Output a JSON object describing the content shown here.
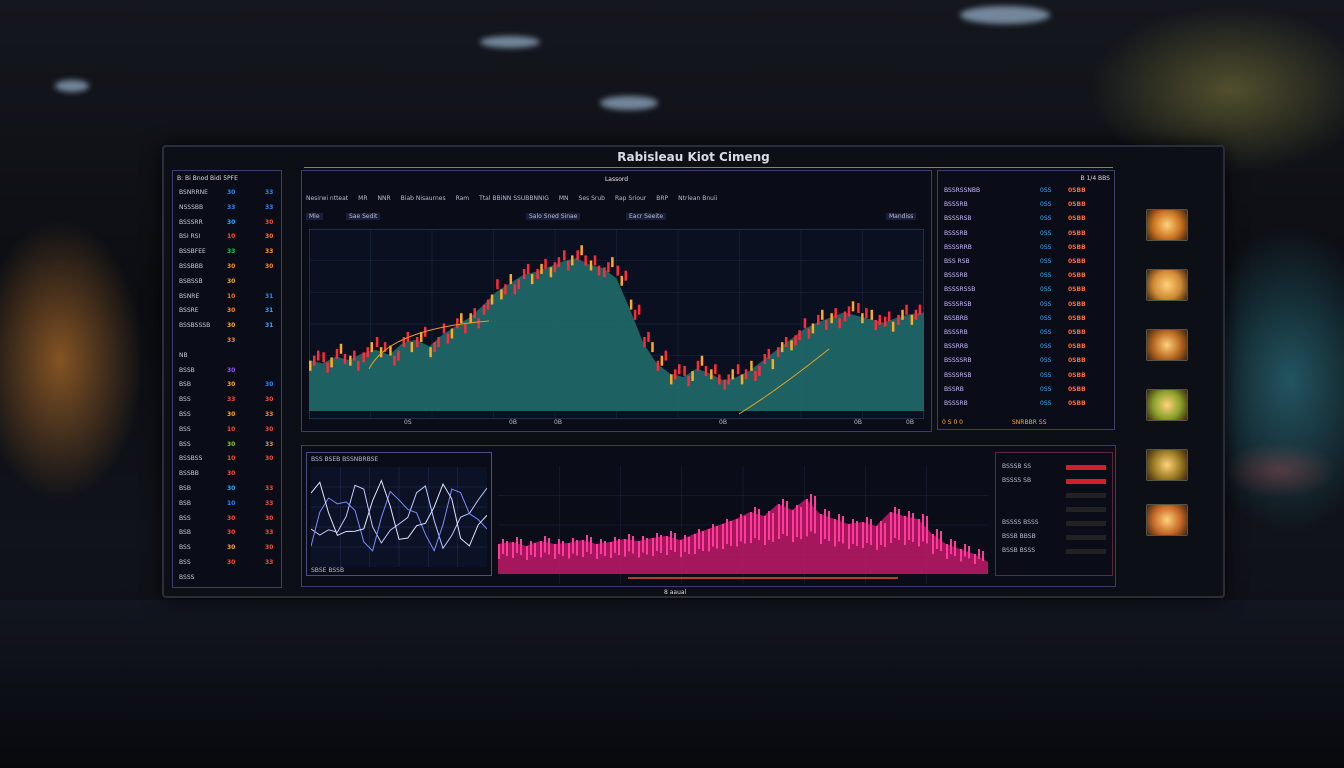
{
  "window": {
    "title": "Rabisleau Kiot Cimeng",
    "subtitle": "Lassord",
    "footer": "8 aaual"
  },
  "toolbar": {
    "items": [
      "Nesirwi ntteat",
      "MR",
      "NNR",
      "Biab Nisaurnes",
      "Ram",
      "Ttal BBiNN SSUBBNNIG",
      "MN",
      "Ses Srub",
      "Rap Sriour",
      "BRP",
      "Ntrlean Bnuii"
    ],
    "sub": [
      "Mle",
      "Sae Sedit",
      "Salo Sned Sinae",
      "Eacr Seeite",
      "Mandiss"
    ]
  },
  "left_panel": {
    "header": "B: Bi Bnod Bidi 5PFE",
    "rows": [
      {
        "name": "BSNRRNE",
        "v1": "30",
        "v2": "33",
        "c1": "#2f86ff",
        "c2": "#2f86ff"
      },
      {
        "name": "NSSSBB",
        "v1": "33",
        "v2": "33",
        "c1": "#2f86ff",
        "c2": "#2f86ff"
      },
      {
        "name": "BSSSRR",
        "v1": "30",
        "v2": "30",
        "c1": "#2fa8ff",
        "c2": "#ff4a3a"
      },
      {
        "name": "BSI RSI",
        "v1": "10",
        "v2": "30",
        "c1": "#ff4a3a",
        "c2": "#ff7a2a"
      },
      {
        "name": "BSSBFEE",
        "v1": "33",
        "v2": "33",
        "c1": "#22cc44",
        "c2": "#ff9a2a"
      },
      {
        "name": "BSSBBB",
        "v1": "30",
        "v2": "30",
        "c1": "#ff8a2a",
        "c2": "#ff8a2a"
      },
      {
        "name": "BSBSSB",
        "v1": "30",
        "v2": "",
        "c1": "#ffaa22",
        "c2": ""
      },
      {
        "name": "BSNRE",
        "v1": "10",
        "v2": "31",
        "c1": "#ff6a2a",
        "c2": "#2f86ff"
      },
      {
        "name": "BSSRE",
        "v1": "30",
        "v2": "31",
        "c1": "#ff8a2a",
        "c2": "#2fa8ff"
      },
      {
        "name": "BSSBSSSB",
        "v1": "30",
        "v2": "31",
        "c1": "#ffaa22",
        "c2": "#2fa8ff"
      },
      {
        "name": "",
        "v1": "33",
        "v2": "",
        "c1": "#ff8a2a",
        "c2": ""
      },
      {
        "name": "NB",
        "v1": "",
        "v2": "",
        "c1": "",
        "c2": ""
      },
      {
        "name": "BSSB",
        "v1": "30",
        "v2": "",
        "c1": "#8a5aff",
        "c2": ""
      },
      {
        "name": "BSB",
        "v1": "30",
        "v2": "30",
        "c1": "#ffaa22",
        "c2": "#2f86ff"
      },
      {
        "name": "BSS",
        "v1": "33",
        "v2": "30",
        "c1": "#ff4a3a",
        "c2": "#ff4a3a"
      },
      {
        "name": "BSS",
        "v1": "30",
        "v2": "33",
        "c1": "#ffaa22",
        "c2": "#ff8a2a"
      },
      {
        "name": "BSS",
        "v1": "10",
        "v2": "30",
        "c1": "#ff4a3a",
        "c2": "#ff4a3a"
      },
      {
        "name": "BSS",
        "v1": "30",
        "v2": "33",
        "c1": "#88cc22",
        "c2": "#ff8a2a"
      },
      {
        "name": "BSSBSS",
        "v1": "10",
        "v2": "30",
        "c1": "#ff4a3a",
        "c2": "#ff4a3a"
      },
      {
        "name": "BSSBB",
        "v1": "30",
        "v2": "",
        "c1": "#ff4a3a",
        "c2": ""
      },
      {
        "name": "BSB",
        "v1": "30",
        "v2": "33",
        "c1": "#2fa8ff",
        "c2": "#ff4a3a"
      },
      {
        "name": "BSB",
        "v1": "10",
        "v2": "33",
        "c1": "#2f86ff",
        "c2": "#ff4a3a"
      },
      {
        "name": "BSS",
        "v1": "30",
        "v2": "30",
        "c1": "#ff4a3a",
        "c2": "#ff4a3a"
      },
      {
        "name": "BSB",
        "v1": "30",
        "v2": "33",
        "c1": "#ff4a3a",
        "c2": "#ff4a3a"
      },
      {
        "name": "BSS",
        "v1": "30",
        "v2": "30",
        "c1": "#ffaa22",
        "c2": "#ff4a3a"
      },
      {
        "name": "BSS",
        "v1": "30",
        "v2": "33",
        "c1": "#ff4a3a",
        "c2": "#ff4a3a"
      },
      {
        "name": "BSSS",
        "v1": "",
        "v2": "",
        "c1": "",
        "c2": ""
      }
    ]
  },
  "right_panel": {
    "header": "B 1/4 BBS",
    "rows": [
      "BSSRSSNBB",
      "BSSSRB",
      "BSSSRSB",
      "BSSSRB",
      "BSSSRRB",
      "BSS RSB",
      "BSSSRB",
      "BSSSRSSB",
      "BSSSRSB",
      "BSSBRB",
      "BSSSRB",
      "BSSRRB",
      "BSSSSRB",
      "BSSSRSB",
      "BSSRB",
      "BSSSRB"
    ],
    "values": [
      "0SS",
      "0SBB"
    ],
    "footer": [
      "0 S 0 0",
      "SNRBBR SS"
    ]
  },
  "main_chart": {
    "x_ticks": [
      "0S",
      "0B",
      "0B",
      "0B",
      "0B",
      "0B"
    ],
    "chart_data": {
      "type": "area",
      "values": [
        30,
        28,
        32,
        30,
        34,
        36,
        33,
        40,
        42,
        38,
        45,
        50,
        55,
        62,
        70,
        75,
        80,
        82,
        85,
        88,
        90,
        86,
        84,
        78,
        60,
        40,
        28,
        22,
        20,
        25,
        22,
        18,
        20,
        24,
        30,
        36,
        42,
        48,
        52,
        55,
        58,
        56,
        54,
        52,
        55,
        57,
        58
      ]
    }
  },
  "bottom": {
    "mini_label": "BSS BSEB BSSNBRBSE",
    "mini_footer": "SBSE BSSB",
    "chart_data": {
      "type": "area",
      "values": [
        30,
        32,
        28,
        33,
        30,
        31,
        34,
        30,
        32,
        35,
        33,
        36,
        38,
        34,
        40,
        45,
        50,
        55,
        62,
        58,
        70,
        64,
        75,
        60,
        55,
        50,
        52,
        48,
        62,
        58,
        55,
        40,
        30,
        25,
        20,
        12
      ]
    },
    "table_rows": [
      "BSSSB SS",
      "BSSSS SB",
      "",
      "",
      "BSSSS BSSS",
      "BSSB BBSB",
      "BSSB BSSS"
    ]
  },
  "thumbs": [
    "#c9721f",
    "#d08a35",
    "#b86820",
    "#8aa02a",
    "#9a7a22",
    "#c76a28"
  ]
}
